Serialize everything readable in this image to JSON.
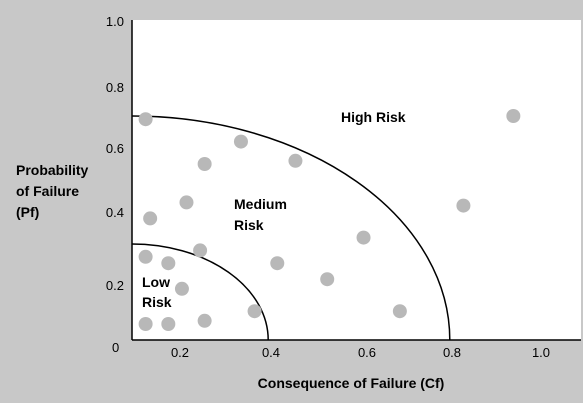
{
  "chart_data": {
    "type": "scatter",
    "xlabel": "Consequence of Failure (Cf)",
    "ylabel_lines": [
      "Probability",
      "of Failure",
      "(Pf)"
    ],
    "xlim": [
      0,
      1.0
    ],
    "ylim": [
      0,
      1.0
    ],
    "x_ticks": [
      "0.2",
      "0.4",
      "0.6",
      "0.8",
      "1.0"
    ],
    "y_ticks": [
      "1.0",
      "0.8",
      "0.6",
      "0.4",
      "0.2"
    ],
    "origin_label": "0",
    "grid": false,
    "regions": [
      {
        "label_lines": [
          "Low",
          "Risk"
        ],
        "boundary_radius": 0.3
      },
      {
        "label_lines": [
          "Medium",
          "Risk"
        ],
        "boundary_radius": 0.7
      },
      {
        "label_lines": [
          "High Risk"
        ],
        "boundary_radius": null
      }
    ],
    "points": [
      {
        "x": 0.03,
        "y": 0.69
      },
      {
        "x": 0.04,
        "y": 0.38
      },
      {
        "x": 0.16,
        "y": 0.55
      },
      {
        "x": 0.24,
        "y": 0.62
      },
      {
        "x": 0.36,
        "y": 0.56
      },
      {
        "x": 0.12,
        "y": 0.43
      },
      {
        "x": 0.03,
        "y": 0.26
      },
      {
        "x": 0.08,
        "y": 0.24
      },
      {
        "x": 0.15,
        "y": 0.28
      },
      {
        "x": 0.11,
        "y": 0.16
      },
      {
        "x": 0.03,
        "y": 0.05
      },
      {
        "x": 0.08,
        "y": 0.05
      },
      {
        "x": 0.16,
        "y": 0.06
      },
      {
        "x": 0.27,
        "y": 0.09
      },
      {
        "x": 0.32,
        "y": 0.24
      },
      {
        "x": 0.43,
        "y": 0.19
      },
      {
        "x": 0.51,
        "y": 0.32
      },
      {
        "x": 0.59,
        "y": 0.09
      },
      {
        "x": 0.73,
        "y": 0.42
      },
      {
        "x": 0.84,
        "y": 0.7
      }
    ],
    "point_color": "#b8b8b8",
    "plot_background": "#ffffff",
    "page_background": "#c8c8c8"
  }
}
